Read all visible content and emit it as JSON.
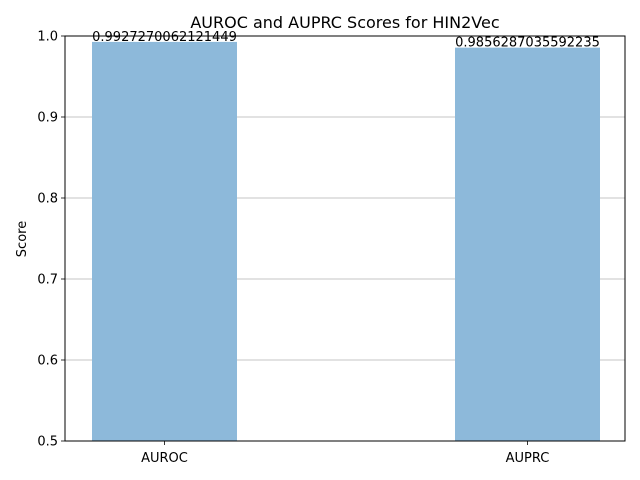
{
  "chart_data": {
    "type": "bar",
    "title": "AUROC and AUPRC Scores for HIN2Vec",
    "xlabel": "",
    "ylabel": "Score",
    "categories": [
      "AUROC",
      "AUPRC"
    ],
    "values": [
      0.9927270062121449,
      0.9856287035592235
    ],
    "data_labels": [
      "0.9927270062121449",
      "0.9856287035592235"
    ],
    "ylim": [
      0.5,
      1.0
    ],
    "yticks": [
      0.5,
      0.6,
      0.7,
      0.8,
      0.9,
      1.0
    ],
    "ytick_labels": [
      "0.5",
      "0.6",
      "0.7",
      "0.8",
      "0.9",
      "1.0"
    ],
    "grid": "y-major",
    "bar_color": "#8db9da"
  }
}
